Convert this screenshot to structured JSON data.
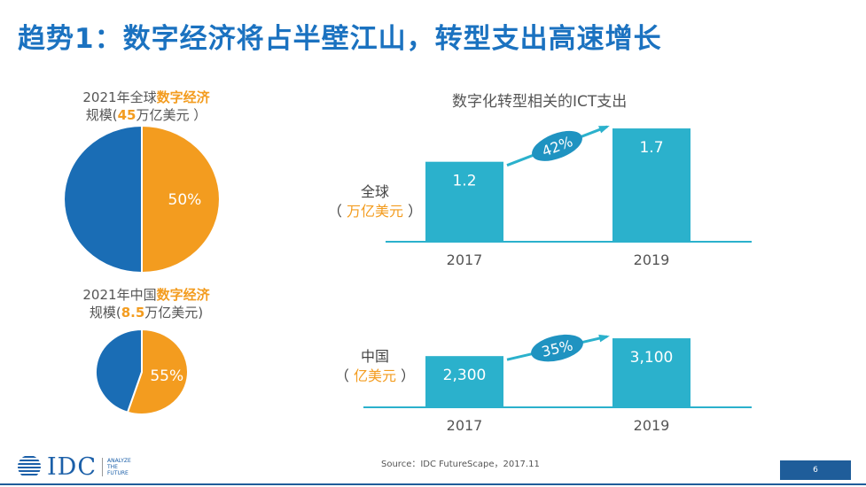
{
  "header": {
    "title": "趋势1：数字经济将占半壁江山，转型支出高速增长"
  },
  "global_pie": {
    "caption_line1_pre": "2021年全球",
    "caption_line1_hl": "数字经济",
    "caption_line2_pre": "规模(",
    "caption_line2_hl": "45",
    "caption_line2_post": "万亿美元 ）"
  },
  "china_pie": {
    "caption_line1_pre": "2021年中国",
    "caption_line1_hl": "数字经济",
    "caption_line2_pre": "规模(",
    "caption_line2_hl": "8.5",
    "caption_line2_post": "万亿美元)"
  },
  "bar_panel": {
    "title": "数字化转型相关的ICT支出"
  },
  "global_bars": {
    "region": "全球",
    "unit_open": "（ ",
    "unit": "万亿美元",
    "unit_close": " ）"
  },
  "china_bars": {
    "region": "中国",
    "unit_open": "（ ",
    "unit": "亿美元",
    "unit_close": " ）"
  },
  "footer": {
    "source": "Source：IDC FutureScape，2017.11",
    "logo_text": "IDC",
    "logo_tag_1": "ANALYZE",
    "logo_tag_2": "THE",
    "logo_tag_3": "FUTURE",
    "page_number": "6"
  },
  "colors": {
    "title_blue": "#1b72c0",
    "pie_blue": "#1a6db5",
    "pie_orange": "#f39c1f",
    "bar_teal": "#2bb1cc",
    "growth_label_bg": "#1f93c1"
  },
  "chart_data": [
    {
      "type": "pie",
      "title": "",
      "slices": [
        {
          "label": "50%",
          "value": 50,
          "color": "#f39c1f",
          "labeled": true
        },
        {
          "label": "",
          "value": 50,
          "color": "#1a6db5",
          "labeled": false
        }
      ]
    },
    {
      "type": "pie",
      "title": "",
      "slices": [
        {
          "label": "55%",
          "value": 55,
          "color": "#f39c1f",
          "labeled": true
        },
        {
          "label": "",
          "value": 45,
          "color": "#1a6db5",
          "labeled": false
        }
      ]
    },
    {
      "type": "bar",
      "title": "",
      "categories": [
        "2017",
        "2019"
      ],
      "values": [
        1.2,
        1.7
      ],
      "value_labels": [
        "1.2",
        "1.7"
      ],
      "growth_label": "42%",
      "ylabel": "全球",
      "ylim": [
        0,
        1.9
      ]
    },
    {
      "type": "bar",
      "title": "",
      "categories": [
        "2017",
        "2019"
      ],
      "values": [
        2300,
        3100
      ],
      "value_labels": [
        "2,300",
        "3,100"
      ],
      "growth_label": "35%",
      "ylabel": "中国",
      "ylim": [
        0,
        3500
      ]
    }
  ]
}
